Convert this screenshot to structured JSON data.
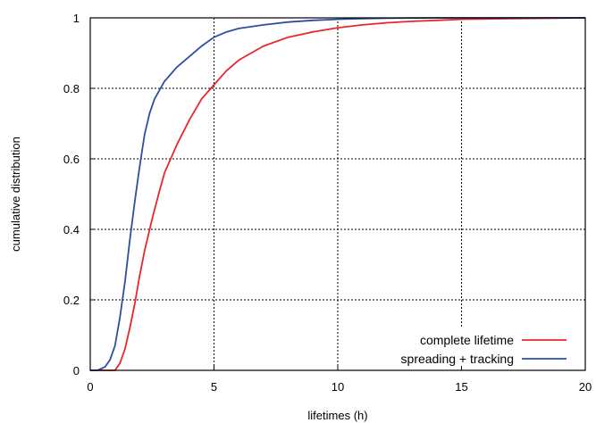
{
  "chart_data": {
    "type": "line",
    "xlabel": "lifetimes (h)",
    "ylabel": "cumulative distribution",
    "xlim": [
      0,
      20
    ],
    "ylim": [
      0,
      1
    ],
    "x_ticks": [
      0,
      5,
      10,
      15,
      20
    ],
    "y_ticks": [
      0,
      0.2,
      0.4,
      0.6,
      0.8,
      1
    ],
    "grid": true,
    "legend_position": "bottom-right",
    "series": [
      {
        "name": "complete lifetime",
        "color": "#e8262b",
        "x": [
          0,
          1.0,
          1.2,
          1.4,
          1.6,
          1.8,
          2.0,
          2.2,
          2.5,
          2.8,
          3.0,
          3.5,
          4.0,
          4.5,
          5.0,
          5.5,
          6.0,
          7.0,
          8.0,
          9.0,
          10.0,
          11.0,
          12.0,
          13.0,
          14.0,
          15.0,
          17.0,
          20.0
        ],
        "y": [
          0,
          0.0,
          0.02,
          0.06,
          0.12,
          0.19,
          0.27,
          0.34,
          0.43,
          0.51,
          0.56,
          0.64,
          0.71,
          0.77,
          0.81,
          0.85,
          0.88,
          0.92,
          0.945,
          0.96,
          0.972,
          0.98,
          0.986,
          0.99,
          0.993,
          0.996,
          0.998,
          1.0
        ]
      },
      {
        "name": "spreading + tracking",
        "color": "#2d4fa0",
        "x": [
          0,
          0.3,
          0.6,
          0.8,
          1.0,
          1.2,
          1.4,
          1.6,
          1.8,
          2.0,
          2.2,
          2.4,
          2.6,
          3.0,
          3.5,
          4.0,
          4.5,
          5.0,
          5.5,
          6.0,
          7.0,
          8.0,
          9.0,
          10.0,
          11.0,
          12.0,
          14.0,
          20.0
        ],
        "y": [
          0,
          0.0,
          0.01,
          0.03,
          0.07,
          0.15,
          0.25,
          0.37,
          0.48,
          0.58,
          0.67,
          0.73,
          0.77,
          0.82,
          0.86,
          0.89,
          0.92,
          0.945,
          0.96,
          0.97,
          0.98,
          0.988,
          0.993,
          0.996,
          0.998,
          0.999,
          1.0,
          1.0
        ]
      }
    ]
  }
}
